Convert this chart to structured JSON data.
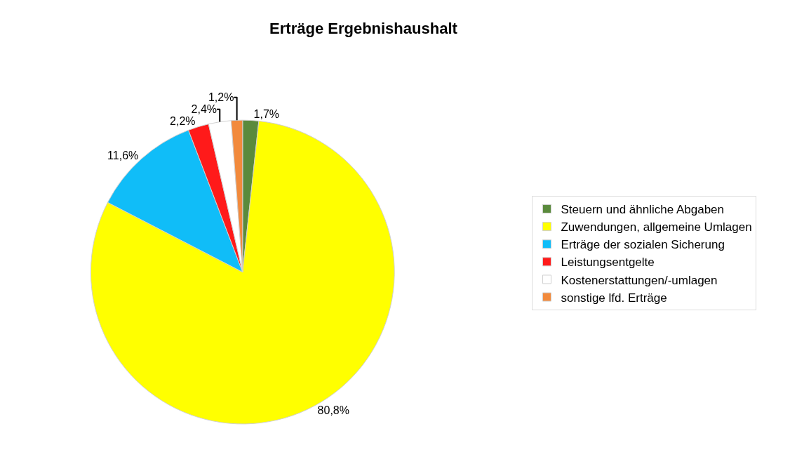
{
  "chart_data": {
    "type": "pie",
    "title": "Erträge Ergebnishaushalt",
    "categories": [
      "Steuern und ähnliche Abgaben",
      "Zuwendungen, allgemeine Umlagen",
      "Erträge der sozialen Sicherung",
      "Leistungsentgelte",
      "Kostenerstattungen/-umlagen",
      "sonstige lfd. Erträge"
    ],
    "values": [
      1.7,
      80.8,
      11.6,
      2.2,
      2.4,
      1.2
    ],
    "value_labels": [
      "1,7%",
      "80,8%",
      "11,6%",
      "2,2%",
      "2,4%",
      "1,2%"
    ],
    "colors": [
      "#5a8a3c",
      "#ffff00",
      "#10bdf8",
      "#ff1a1a",
      "#ffffff",
      "#f28a3c"
    ],
    "legend": "right"
  }
}
